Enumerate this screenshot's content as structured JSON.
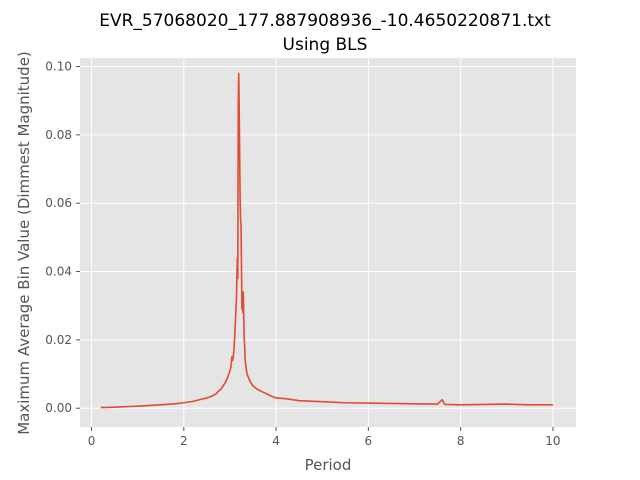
{
  "chart_data": {
    "type": "line",
    "title": "EVR_57068020_177.887908936_-10.4650220871.txt",
    "subtitle": "Using BLS",
    "xlabel": "Period",
    "ylabel": "Maximum Average Bin Value (Dimmest Magnitude)",
    "xlim": [
      -0.25,
      10.5
    ],
    "ylim": [
      -0.0055,
      0.1025
    ],
    "xticks": [
      0,
      2,
      4,
      6,
      8,
      10
    ],
    "yticks": [
      0.0,
      0.02,
      0.04,
      0.06,
      0.08,
      0.1
    ],
    "xtick_labels": [
      "0",
      "2",
      "4",
      "6",
      "8",
      "10"
    ],
    "ytick_labels": [
      "0.00",
      "0.02",
      "0.04",
      "0.06",
      "0.08",
      "0.10"
    ],
    "grid": true,
    "style": {
      "background": "#e5e5e5",
      "grid_color": "#ffffff",
      "line_color": "#e24a33"
    },
    "series": [
      {
        "x": [
          0.2,
          0.5,
          1.0,
          1.5,
          1.8,
          2.0,
          2.2,
          2.4,
          2.5,
          2.6,
          2.7,
          2.75,
          2.8,
          2.85,
          2.9,
          2.95,
          3.0,
          3.02,
          3.04,
          3.06,
          3.08,
          3.1,
          3.12,
          3.14,
          3.16,
          3.17,
          3.18,
          3.19,
          3.2,
          3.21,
          3.22,
          3.23,
          3.24,
          3.25,
          3.26,
          3.27,
          3.28,
          3.29,
          3.3,
          3.31,
          3.32,
          3.33,
          3.34,
          3.35,
          3.37,
          3.4,
          3.45,
          3.5,
          3.55,
          3.6,
          3.7,
          3.8,
          3.9,
          4.0,
          4.2,
          4.5,
          5.0,
          5.5,
          6.0,
          6.5,
          7.0,
          7.5,
          7.6,
          7.65,
          7.7,
          8.0,
          8.5,
          9.0,
          9.5,
          10.0
        ],
        "y": [
          0.0002,
          0.0003,
          0.0006,
          0.001,
          0.0013,
          0.0016,
          0.002,
          0.0027,
          0.003,
          0.0035,
          0.0042,
          0.005,
          0.0055,
          0.0065,
          0.0075,
          0.009,
          0.011,
          0.012,
          0.015,
          0.014,
          0.016,
          0.02,
          0.026,
          0.032,
          0.044,
          0.038,
          0.089,
          0.098,
          0.088,
          0.075,
          0.062,
          0.055,
          0.054,
          0.041,
          0.029,
          0.033,
          0.028,
          0.034,
          0.026,
          0.02,
          0.018,
          0.014,
          0.013,
          0.012,
          0.01,
          0.009,
          0.0075,
          0.0065,
          0.006,
          0.0055,
          0.0048,
          0.0042,
          0.0035,
          0.003,
          0.0028,
          0.0022,
          0.0019,
          0.0016,
          0.0015,
          0.0014,
          0.0013,
          0.0012,
          0.0025,
          0.0012,
          0.0011,
          0.001,
          0.0011,
          0.0012,
          0.001,
          0.001
        ]
      }
    ]
  }
}
